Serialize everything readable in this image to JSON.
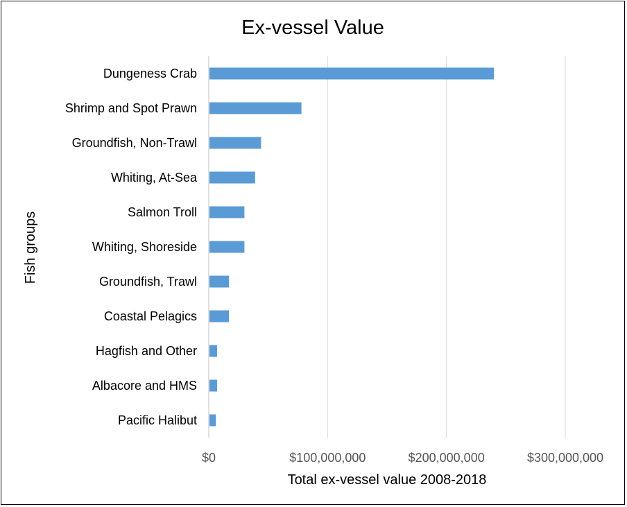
{
  "chart_data": {
    "type": "bar",
    "orientation": "horizontal",
    "title": "Ex-vessel Value",
    "xlabel": "Total ex-vessel value 2008-2018",
    "ylabel": "Fish groups",
    "categories": [
      "Dungeness Crab",
      "Shrimp and Spot Prawn",
      "Groundfish, Non-Trawl",
      "Whiting, At-Sea",
      "Salmon Troll",
      "Whiting, Shoreside",
      "Groundfish, Trawl",
      "Coastal Pelagics",
      "Hagfish and Other",
      "Albacore and HMS",
      "Pacific Halibut"
    ],
    "values": [
      240000000,
      78000000,
      44000000,
      39000000,
      30000000,
      30000000,
      17000000,
      17000000,
      7000000,
      7000000,
      6000000
    ],
    "xlim": [
      0,
      300000000
    ],
    "xticks": [
      0,
      100000000,
      200000000,
      300000000
    ],
    "xtick_labels": [
      "$0",
      "$100,000,000",
      "$200,000,000",
      "$300,000,000"
    ],
    "grid": "vertical",
    "legend": "none",
    "bar_color": "#5b9bd5"
  }
}
